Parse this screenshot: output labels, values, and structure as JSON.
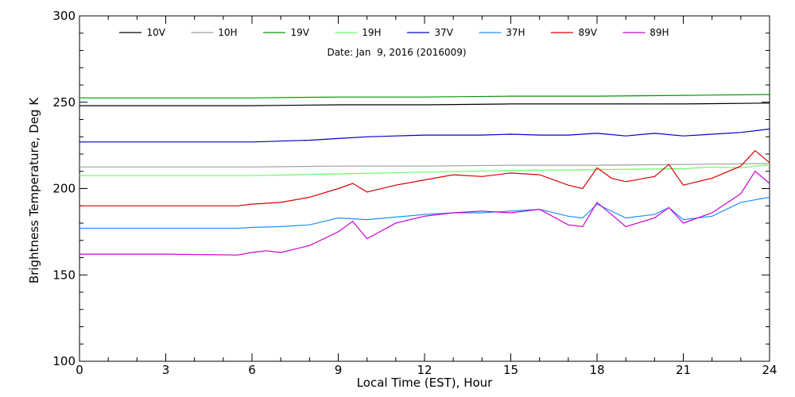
{
  "chart_data": {
    "type": "line",
    "title": "",
    "annotation": "Date: Jan  9, 2016 (2016009)",
    "xlabel": "Local Time (EST), Hour",
    "ylabel": "Brightness Temperature, Deg K",
    "xlim": [
      0,
      24
    ],
    "ylim": [
      100,
      300
    ],
    "xticks": [
      0,
      3,
      6,
      9,
      12,
      15,
      18,
      21,
      24
    ],
    "yticks": [
      100,
      150,
      200,
      250,
      300
    ],
    "grid": false,
    "legend_position": "top",
    "series": [
      {
        "name": "10V",
        "color": "#000000",
        "x": [
          0,
          3,
          6,
          9,
          12,
          15,
          18,
          21,
          24
        ],
        "y": [
          248,
          248,
          248,
          248.5,
          248.5,
          249,
          249,
          249,
          249.5
        ]
      },
      {
        "name": "10H",
        "color": "#a0a0a0",
        "x": [
          0,
          3,
          6,
          9,
          12,
          15,
          18,
          21,
          24
        ],
        "y": [
          212.5,
          212.5,
          212.5,
          213,
          213,
          213.5,
          213.5,
          214,
          214.5
        ]
      },
      {
        "name": "19V",
        "color": "#009900",
        "x": [
          0,
          3,
          6,
          9,
          12,
          15,
          18,
          21,
          24
        ],
        "y": [
          252.5,
          252.5,
          252.5,
          253,
          253,
          253.5,
          253.5,
          254,
          254.5
        ]
      },
      {
        "name": "19H",
        "color": "#66ff66",
        "x": [
          0,
          3,
          6,
          9,
          12,
          15,
          18,
          21,
          22,
          23,
          23.5,
          24
        ],
        "y": [
          207.5,
          207.5,
          207.5,
          208.5,
          209.5,
          210.5,
          211,
          211.5,
          212.5,
          212,
          213,
          213.5
        ]
      },
      {
        "name": "37V",
        "color": "#0000cc",
        "x": [
          0,
          3,
          6,
          7,
          8,
          9,
          10,
          11,
          12,
          13,
          14,
          15,
          16,
          17,
          18,
          19,
          20,
          21,
          22,
          23,
          24
        ],
        "y": [
          227,
          227,
          227,
          227.5,
          228,
          229,
          230,
          230.5,
          231,
          231,
          231,
          231.5,
          231,
          231,
          232,
          230.5,
          232,
          230.5,
          231.5,
          232.5,
          234.5
        ]
      },
      {
        "name": "37H",
        "color": "#1e90ff",
        "x": [
          0,
          3,
          5.5,
          6,
          7,
          8,
          9,
          10,
          11,
          12,
          13,
          14,
          15,
          16,
          17,
          17.5,
          18,
          19,
          20,
          20.5,
          21,
          22,
          23,
          24
        ],
        "y": [
          177,
          177,
          177,
          177.5,
          178,
          179,
          183,
          182,
          183.5,
          185,
          186,
          186,
          187,
          188,
          184,
          183,
          191,
          183,
          185,
          189,
          182,
          184,
          192,
          195
        ]
      },
      {
        "name": "89V",
        "color": "#dd0000",
        "x": [
          0,
          3,
          5.5,
          6,
          7,
          8,
          9,
          9.5,
          10,
          11,
          12,
          13,
          14,
          15,
          16,
          17,
          17.5,
          18,
          18.5,
          19,
          20,
          20.5,
          21,
          22,
          23,
          23.5,
          24
        ],
        "y": [
          190,
          190,
          190,
          191,
          192,
          195,
          200,
          203,
          198,
          202,
          205,
          208,
          207,
          209,
          208,
          202,
          200,
          212,
          206,
          204,
          207,
          214,
          202,
          206,
          213,
          222,
          215
        ]
      },
      {
        "name": "89H",
        "color": "#cc00cc",
        "x": [
          0,
          3,
          5.5,
          6,
          6.5,
          7,
          8,
          9,
          9.5,
          10,
          11,
          12,
          13,
          14,
          15,
          16,
          17,
          17.5,
          18,
          18.5,
          19,
          20,
          20.5,
          21,
          22,
          23,
          23.5,
          24
        ],
        "y": [
          162,
          162,
          161.5,
          163,
          164,
          163,
          167,
          175,
          181,
          171,
          180,
          184,
          186,
          187,
          186,
          188,
          179,
          178,
          192,
          185,
          178,
          183,
          189,
          180,
          186,
          197,
          210,
          203
        ]
      }
    ]
  }
}
